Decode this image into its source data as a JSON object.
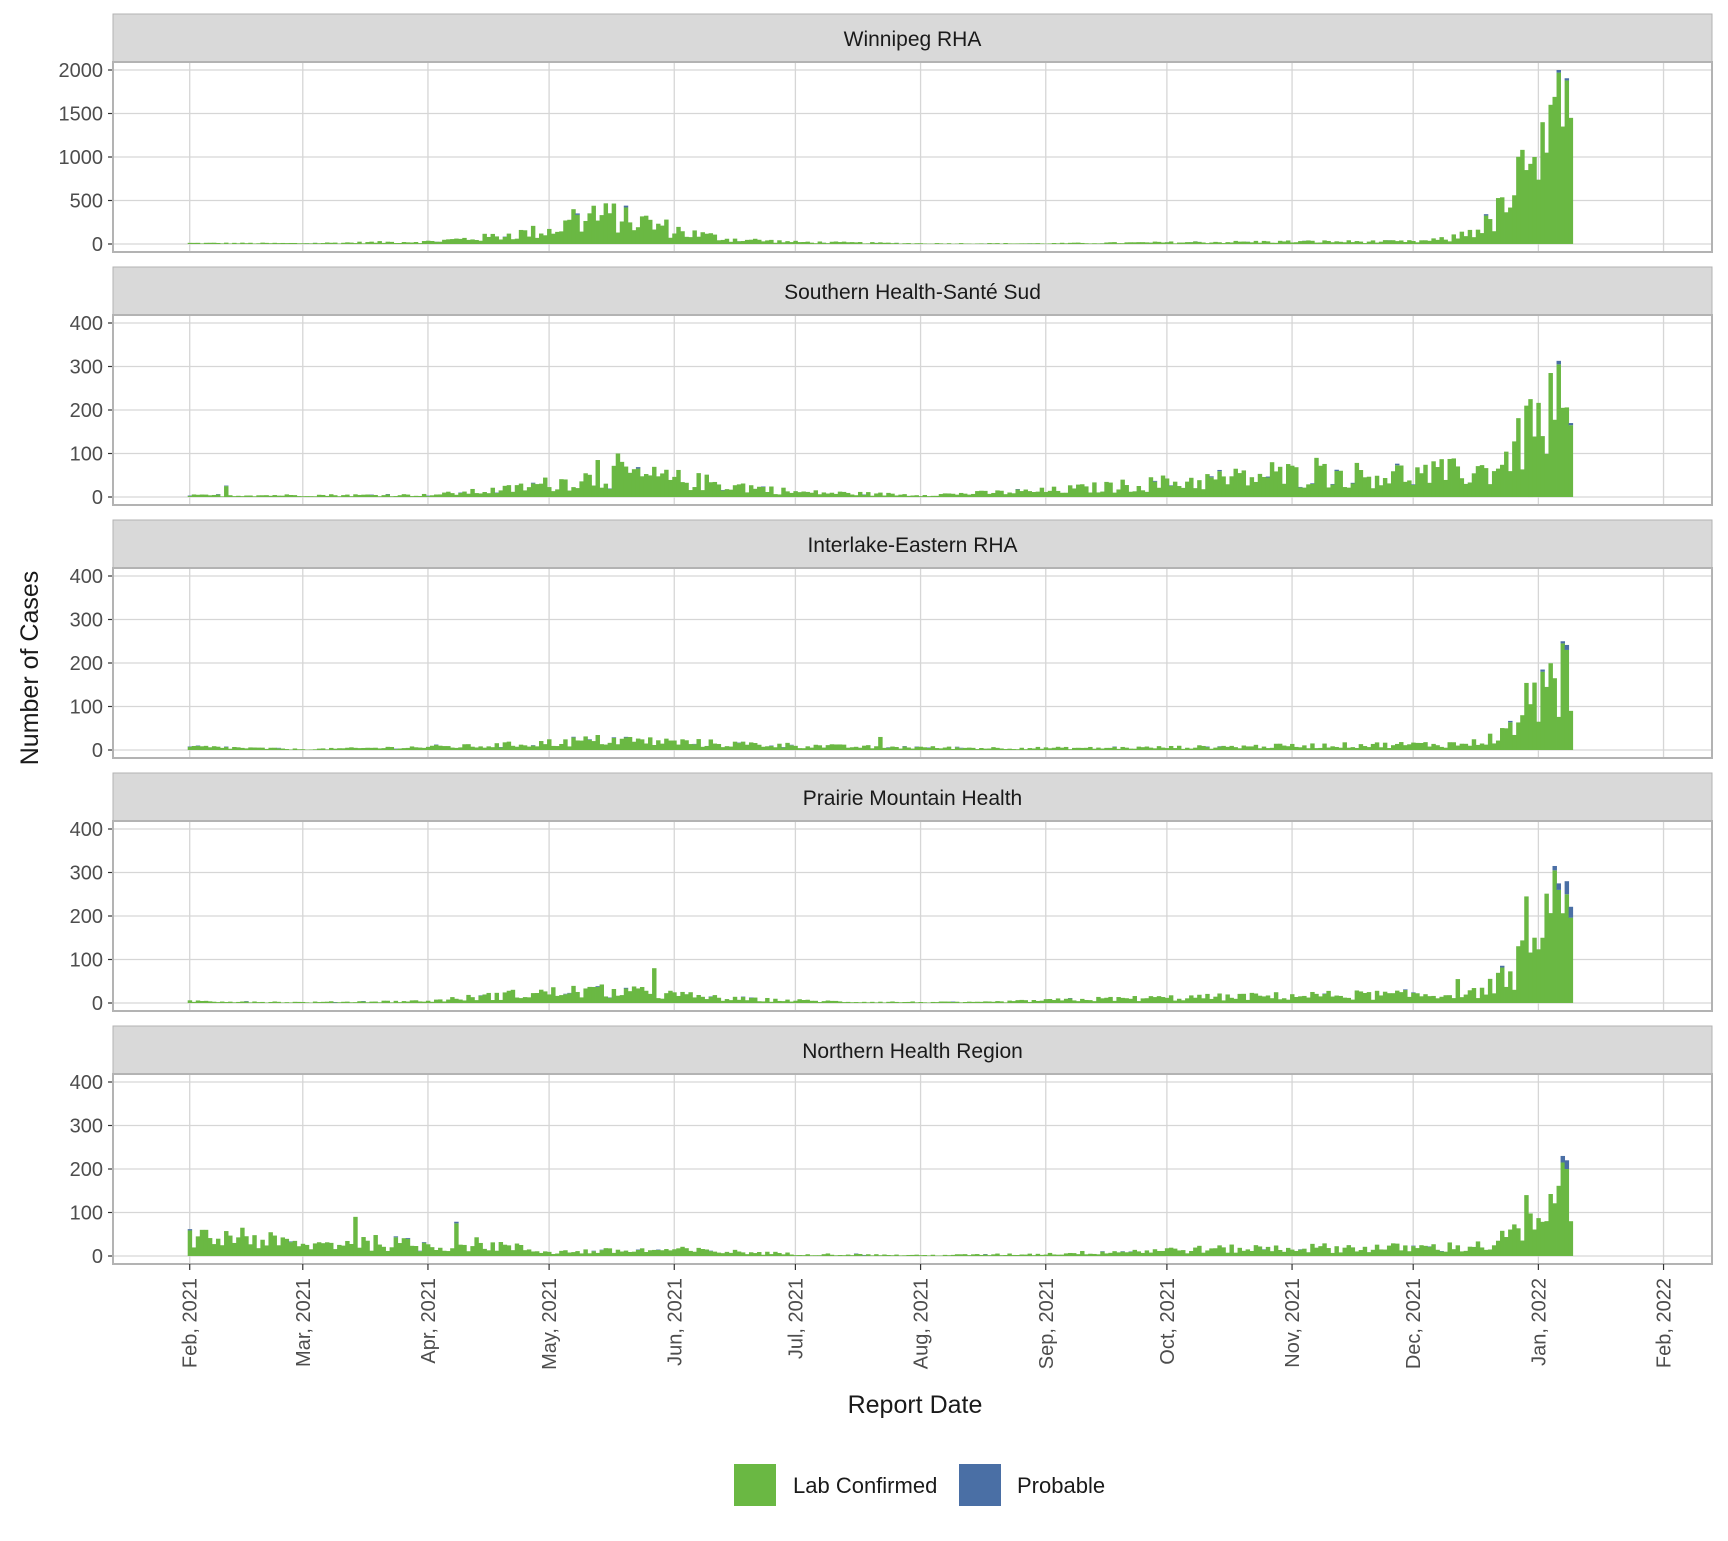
{
  "chart_data": {
    "type": "bar",
    "stacked": true,
    "xlabel": "Report Date",
    "ylabel": "Number of Cases",
    "x_ticks": [
      "2021-02-01",
      "2021-03-01",
      "2021-04-01",
      "2021-05-01",
      "2021-06-01",
      "2021-07-01",
      "2021-08-01",
      "2021-09-01",
      "2021-10-01",
      "2021-11-01",
      "2021-12-01",
      "2022-01-01",
      "2022-02-01"
    ],
    "x_tick_labels": [
      "Feb, 2021",
      "Mar, 2021",
      "Apr, 2021",
      "May, 2021",
      "Jun, 2021",
      "Jul, 2021",
      "Aug, 2021",
      "Sep, 2021",
      "Oct, 2021",
      "Nov, 2021",
      "Dec, 2021",
      "Jan, 2022",
      "Feb, 2022"
    ],
    "xlim": [
      "2021-01-13",
      "2022-02-13"
    ],
    "legend_position": "bottom",
    "legend": [
      {
        "name": "Lab Confirmed",
        "color": "#6ab843"
      },
      {
        "name": "Probable",
        "color": "#4a6fa5"
      }
    ],
    "grid": true,
    "panels": [
      {
        "title": "Winnipeg RHA",
        "ylim": [
          0,
          2000
        ],
        "y_ticks": [
          0,
          500,
          1000,
          1500,
          2000
        ],
        "anchors": [
          [
            "2021-02-01",
            12
          ],
          [
            "2021-03-01",
            10
          ],
          [
            "2021-04-01",
            30
          ],
          [
            "2021-04-15",
            80
          ],
          [
            "2021-05-01",
            170
          ],
          [
            "2021-05-10",
            300
          ],
          [
            "2021-05-17",
            340
          ],
          [
            "2021-05-25",
            260
          ],
          [
            "2021-06-05",
            130
          ],
          [
            "2021-06-15",
            60
          ],
          [
            "2021-07-01",
            25
          ],
          [
            "2021-08-01",
            8
          ],
          [
            "2021-09-01",
            8
          ],
          [
            "2021-10-01",
            20
          ],
          [
            "2021-11-01",
            30
          ],
          [
            "2021-12-01",
            30
          ],
          [
            "2021-12-10",
            60
          ],
          [
            "2021-12-20",
            250
          ],
          [
            "2021-12-25",
            550
          ],
          [
            "2021-12-30",
            950
          ],
          [
            "2022-01-02",
            1300
          ],
          [
            "2022-01-06",
            1600
          ],
          [
            "2022-01-08",
            1500
          ]
        ],
        "peaks": [
          [
            "2021-05-07",
            400
          ],
          [
            "2021-05-12",
            440
          ],
          [
            "2021-05-20",
            420
          ],
          [
            "2021-12-26",
            560
          ],
          [
            "2021-12-31",
            1000
          ],
          [
            "2022-01-02",
            1400
          ],
          [
            "2022-01-03",
            1050
          ],
          [
            "2022-01-04",
            1600
          ],
          [
            "2022-01-06",
            1970
          ],
          [
            "2022-01-07",
            1350
          ],
          [
            "2022-01-08",
            1880
          ],
          [
            "2022-01-09",
            1450
          ]
        ],
        "probable_peaks": [
          [
            "2022-01-06",
            30
          ],
          [
            "2022-01-08",
            25
          ]
        ]
      },
      {
        "title": "Southern Health-Santé Sud",
        "ylim": [
          0,
          400
        ],
        "y_ticks": [
          0,
          100,
          200,
          300,
          400
        ],
        "anchors": [
          [
            "2021-02-01",
            4
          ],
          [
            "2021-04-01",
            5
          ],
          [
            "2021-04-20",
            18
          ],
          [
            "2021-05-10",
            45
          ],
          [
            "2021-05-20",
            55
          ],
          [
            "2021-06-10",
            35
          ],
          [
            "2021-07-01",
            12
          ],
          [
            "2021-08-01",
            5
          ],
          [
            "2021-09-01",
            15
          ],
          [
            "2021-10-01",
            35
          ],
          [
            "2021-11-01",
            55
          ],
          [
            "2021-12-01",
            55
          ],
          [
            "2021-12-20",
            65
          ],
          [
            "2021-12-28",
            130
          ],
          [
            "2022-01-04",
            220
          ],
          [
            "2022-01-09",
            170
          ]
        ],
        "peaks": [
          [
            "2021-02-10",
            25
          ],
          [
            "2021-05-13",
            85
          ],
          [
            "2021-05-18",
            100
          ],
          [
            "2021-05-20",
            70
          ],
          [
            "2021-10-27",
            80
          ],
          [
            "2021-11-07",
            90
          ],
          [
            "2021-12-29",
            210
          ],
          [
            "2021-12-30",
            225
          ],
          [
            "2022-01-02",
            140
          ],
          [
            "2022-01-04",
            285
          ],
          [
            "2022-01-06",
            305
          ],
          [
            "2022-01-07",
            205
          ],
          [
            "2022-01-09",
            165
          ]
        ],
        "probable_peaks": [
          [
            "2022-01-06",
            8
          ],
          [
            "2022-01-09",
            5
          ]
        ]
      },
      {
        "title": "Interlake-Eastern RHA",
        "ylim": [
          0,
          400
        ],
        "y_ticks": [
          0,
          100,
          200,
          300,
          400
        ],
        "anchors": [
          [
            "2021-02-01",
            8
          ],
          [
            "2021-03-01",
            2
          ],
          [
            "2021-04-15",
            10
          ],
          [
            "2021-05-15",
            25
          ],
          [
            "2021-06-15",
            15
          ],
          [
            "2021-07-15",
            8
          ],
          [
            "2021-08-15",
            5
          ],
          [
            "2021-09-15",
            5
          ],
          [
            "2021-10-15",
            8
          ],
          [
            "2021-11-15",
            12
          ],
          [
            "2021-12-15",
            15
          ],
          [
            "2021-12-24",
            40
          ],
          [
            "2021-12-31",
            130
          ],
          [
            "2022-01-04",
            150
          ],
          [
            "2022-01-08",
            200
          ],
          [
            "2022-01-09",
            90
          ]
        ],
        "peaks": [
          [
            "2021-07-22",
            30
          ],
          [
            "2021-12-28",
            80
          ],
          [
            "2021-12-31",
            155
          ],
          [
            "2022-01-02",
            180
          ],
          [
            "2022-01-03",
            145
          ],
          [
            "2022-01-05",
            165
          ],
          [
            "2022-01-07",
            245
          ],
          [
            "2022-01-08",
            230
          ],
          [
            "2022-01-09",
            90
          ]
        ],
        "probable_peaks": [
          [
            "2022-01-07",
            5
          ],
          [
            "2022-01-02",
            5
          ]
        ]
      },
      {
        "title": "Prairie Mountain Health",
        "ylim": [
          0,
          400
        ],
        "y_ticks": [
          0,
          100,
          200,
          300,
          400
        ],
        "anchors": [
          [
            "2021-02-01",
            5
          ],
          [
            "2021-03-01",
            2
          ],
          [
            "2021-04-01",
            5
          ],
          [
            "2021-04-20",
            20
          ],
          [
            "2021-05-10",
            30
          ],
          [
            "2021-05-25",
            25
          ],
          [
            "2021-06-15",
            10
          ],
          [
            "2021-07-15",
            3
          ],
          [
            "2021-08-15",
            2
          ],
          [
            "2021-09-15",
            10
          ],
          [
            "2021-10-15",
            15
          ],
          [
            "2021-11-15",
            20
          ],
          [
            "2021-12-15",
            20
          ],
          [
            "2021-12-24",
            60
          ],
          [
            "2021-12-30",
            120
          ],
          [
            "2022-01-05",
            200
          ],
          [
            "2022-01-09",
            230
          ]
        ],
        "peaks": [
          [
            "2021-05-27",
            80
          ],
          [
            "2021-12-12",
            55
          ],
          [
            "2021-12-29",
            245
          ],
          [
            "2022-01-02",
            150
          ],
          [
            "2022-01-05",
            305
          ],
          [
            "2022-01-06",
            260
          ],
          [
            "2022-01-08",
            250
          ]
        ],
        "probable_peaks": [
          [
            "2022-01-05",
            10
          ],
          [
            "2022-01-06",
            15
          ],
          [
            "2022-01-08",
            30
          ],
          [
            "2022-01-09",
            25
          ]
        ]
      },
      {
        "title": "Northern Health Region",
        "ylim": [
          0,
          400
        ],
        "y_ticks": [
          0,
          100,
          200,
          300,
          400
        ],
        "anchors": [
          [
            "2021-02-01",
            40
          ],
          [
            "2021-02-15",
            45
          ],
          [
            "2021-03-01",
            25
          ],
          [
            "2021-03-15",
            35
          ],
          [
            "2021-04-01",
            25
          ],
          [
            "2021-04-15",
            30
          ],
          [
            "2021-05-01",
            10
          ],
          [
            "2021-06-01",
            15
          ],
          [
            "2021-07-01",
            5
          ],
          [
            "2021-08-01",
            2
          ],
          [
            "2021-09-01",
            5
          ],
          [
            "2021-10-01",
            15
          ],
          [
            "2021-11-01",
            20
          ],
          [
            "2021-12-01",
            20
          ],
          [
            "2021-12-20",
            25
          ],
          [
            "2021-12-27",
            60
          ],
          [
            "2022-01-03",
            80
          ],
          [
            "2022-01-08",
            180
          ]
        ],
        "peaks": [
          [
            "2021-02-14",
            65
          ],
          [
            "2021-03-14",
            90
          ],
          [
            "2021-04-08",
            75
          ],
          [
            "2021-12-29",
            140
          ],
          [
            "2022-01-07",
            215
          ],
          [
            "2022-01-08",
            200
          ],
          [
            "2022-01-09",
            80
          ]
        ],
        "probable_peaks": [
          [
            "2022-01-07",
            15
          ],
          [
            "2022-01-08",
            20
          ]
        ]
      }
    ]
  }
}
